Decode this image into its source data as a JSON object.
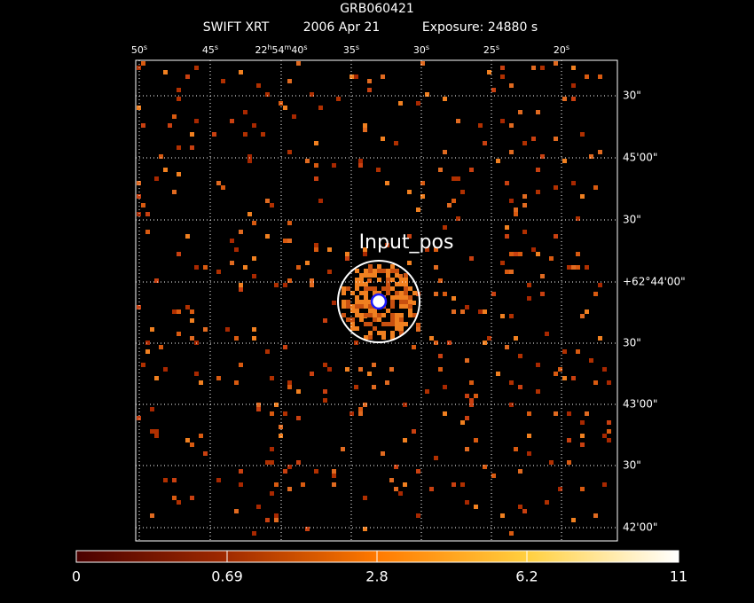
{
  "header": {
    "title": "GRB060421",
    "instrument": "SWIFT XRT",
    "date": "2006 Apr 21",
    "exposure": "Exposure: 24880 s"
  },
  "top_axis": [
    [
      "50",
      "s"
    ],
    [
      "45",
      "s"
    ],
    [
      "22",
      "h",
      "54",
      "m",
      "40",
      "s"
    ],
    [
      "35",
      "s"
    ],
    [
      "30",
      "s"
    ],
    [
      "25",
      "s"
    ],
    [
      "20",
      "s"
    ]
  ],
  "right_axis": [
    "30\"",
    "45'00\"",
    "30\"",
    "+62°44'00\"",
    "30\"",
    "43'00\"",
    "30\"",
    "42'00\""
  ],
  "region_label": "Input_pos",
  "colorbar": [
    "0",
    "0.69",
    "2.8",
    "6.2",
    "11"
  ]
}
